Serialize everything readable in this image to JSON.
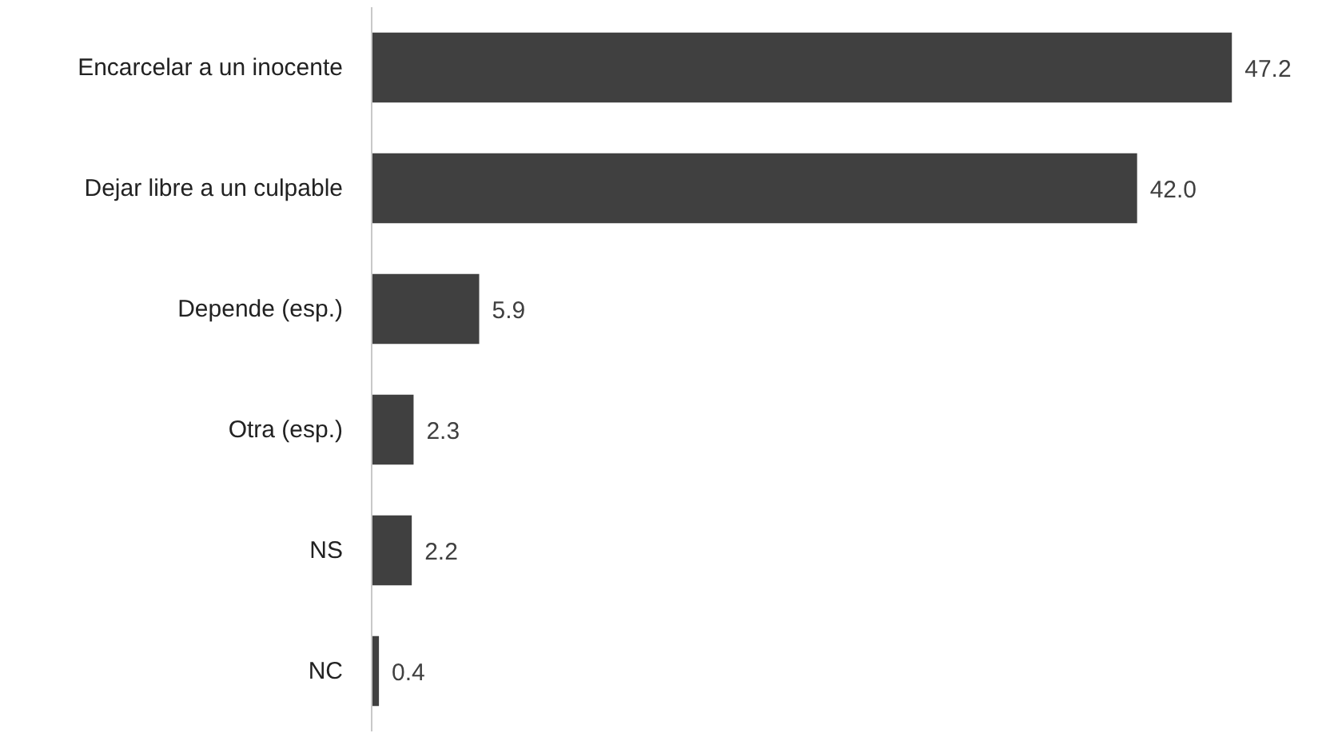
{
  "chart_data": {
    "type": "bar",
    "orientation": "horizontal",
    "categories": [
      "Encarcelar a un inocente",
      "Dejar libre a un culpable",
      "Depende (esp.)",
      "Otra (esp.)",
      "NS",
      "NC"
    ],
    "values": [
      47.2,
      42.0,
      5.9,
      2.3,
      2.2,
      0.4
    ],
    "value_labels": [
      "47.2",
      "42.0",
      "5.9",
      "2.3",
      "2.2",
      "0.4"
    ],
    "color": "#404040",
    "grid": false
  }
}
